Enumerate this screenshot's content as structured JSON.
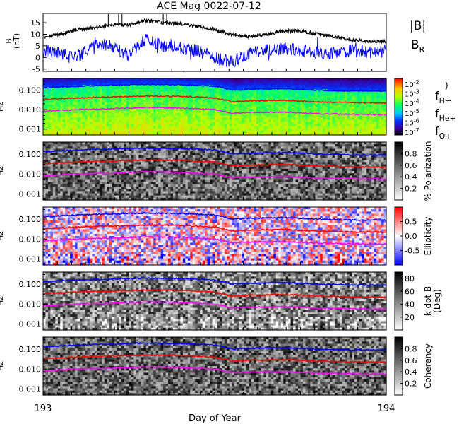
{
  "title": "ACE Mag 0022-07-12",
  "xlabel": "Day of Year",
  "x_ticks": [
    "193",
    "194"
  ],
  "chart_data": [
    {
      "type": "line",
      "panel": "magnetic-field",
      "ylabel": [
        "B",
        "(nT)"
      ],
      "ylim": [
        -6,
        19
      ],
      "yticks": [
        -5,
        0,
        5,
        10,
        15
      ],
      "series": [
        {
          "name": "|B|",
          "color": "#000000",
          "points": [
            [
              193.0,
              9.0
            ],
            [
              193.05,
              10.0
            ],
            [
              193.1,
              12.0
            ],
            [
              193.15,
              13.0
            ],
            [
              193.2,
              14.0
            ],
            [
              193.25,
              14.0
            ],
            [
              193.3,
              16.0
            ],
            [
              193.35,
              15.0
            ],
            [
              193.4,
              14.5
            ],
            [
              193.45,
              13.5
            ],
            [
              193.5,
              12.0
            ],
            [
              193.55,
              10.0
            ],
            [
              193.6,
              9.0
            ],
            [
              193.65,
              10.0
            ],
            [
              193.7,
              11.5
            ],
            [
              193.75,
              11.5
            ],
            [
              193.8,
              10.0
            ],
            [
              193.85,
              9.0
            ],
            [
              193.9,
              7.5
            ],
            [
              193.95,
              7.0
            ],
            [
              194.0,
              7.0
            ]
          ]
        },
        {
          "name": "B_R",
          "color": "#0000ff",
          "points": [
            [
              193.0,
              3.0
            ],
            [
              193.05,
              2.0
            ],
            [
              193.1,
              0.0
            ],
            [
              193.15,
              6.0
            ],
            [
              193.2,
              5.0
            ],
            [
              193.25,
              1.0
            ],
            [
              193.3,
              8.0
            ],
            [
              193.35,
              5.0
            ],
            [
              193.4,
              4.0
            ],
            [
              193.45,
              3.0
            ],
            [
              193.5,
              0.0
            ],
            [
              193.55,
              -2.0
            ],
            [
              193.6,
              2.0
            ],
            [
              193.65,
              3.0
            ],
            [
              193.7,
              4.0
            ],
            [
              193.75,
              3.0
            ],
            [
              193.8,
              2.0
            ],
            [
              193.85,
              2.0
            ],
            [
              193.9,
              3.0
            ],
            [
              193.95,
              2.0
            ],
            [
              194.0,
              3.0
            ]
          ]
        }
      ],
      "legend": [
        {
          "label": "|B|",
          "color": "#000000"
        },
        {
          "label": "B",
          "sub": "R",
          "color": "#3333cc"
        }
      ]
    },
    {
      "type": "heatmap",
      "panel": "power",
      "ylabel": "Hz",
      "yscale": "log",
      "ylim": [
        0.0005,
        0.4
      ],
      "ytick_labels": [
        "0.001",
        "0.010",
        "0.100"
      ],
      "colorbar": {
        "type": "log",
        "tick_labels": [
          "10^-2",
          "10^-3",
          "10^-4",
          "10^-5",
          "10^-6",
          "10^-7"
        ],
        "unit_label": ")"
      },
      "curves": [
        {
          "name": "f_H+",
          "color": "#0000ff",
          "points": [
            [
              193.0,
              0.13
            ],
            [
              193.1,
              0.16
            ],
            [
              193.2,
              0.18
            ],
            [
              193.3,
              0.2
            ],
            [
              193.4,
              0.19
            ],
            [
              193.5,
              0.16
            ],
            [
              193.55,
              0.1
            ],
            [
              193.6,
              0.11
            ],
            [
              193.7,
              0.12
            ],
            [
              193.8,
              0.1
            ],
            [
              193.9,
              0.09
            ],
            [
              194.0,
              0.09
            ]
          ]
        },
        {
          "name": "f_He+",
          "color": "#ff0000",
          "points": [
            [
              193.0,
              0.033
            ],
            [
              193.1,
              0.04
            ],
            [
              193.2,
              0.045
            ],
            [
              193.3,
              0.05
            ],
            [
              193.4,
              0.048
            ],
            [
              193.5,
              0.04
            ],
            [
              193.55,
              0.025
            ],
            [
              193.6,
              0.028
            ],
            [
              193.7,
              0.03
            ],
            [
              193.8,
              0.025
            ],
            [
              193.9,
              0.023
            ],
            [
              194.0,
              0.022
            ]
          ]
        },
        {
          "name": "f_O+",
          "color": "#ff00ff",
          "points": [
            [
              193.0,
              0.008
            ],
            [
              193.1,
              0.01
            ],
            [
              193.2,
              0.011
            ],
            [
              193.3,
              0.013
            ],
            [
              193.4,
              0.012
            ],
            [
              193.5,
              0.01
            ],
            [
              193.55,
              0.0065
            ],
            [
              193.6,
              0.007
            ],
            [
              193.7,
              0.0075
            ],
            [
              193.8,
              0.0062
            ],
            [
              193.9,
              0.0058
            ],
            [
              194.0,
              0.0055
            ]
          ]
        }
      ],
      "legend": [
        {
          "label": "f",
          "sub": "H+",
          "color": "#2222cc"
        },
        {
          "label": "f",
          "sub": "He+",
          "color": "#dd2222"
        },
        {
          "label": "f",
          "sub": "O+",
          "color": "#cc22cc"
        }
      ]
    },
    {
      "type": "heatmap",
      "panel": "polarization",
      "ylabel": "Hz",
      "yscale": "log",
      "ylim": [
        0.0005,
        0.4
      ],
      "ytick_labels": [
        "0.001",
        "0.010",
        "0.100"
      ],
      "colorbar": {
        "type": "linear",
        "range": [
          0,
          1
        ],
        "tick_labels": [
          "0.8",
          "0.6",
          "0.4",
          "0.2"
        ],
        "label": "% Polarization"
      }
    },
    {
      "type": "heatmap",
      "panel": "ellipticity",
      "ylabel": "Hz",
      "yscale": "log",
      "ylim": [
        0.0005,
        0.4
      ],
      "ytick_labels": [
        "0.001",
        "0.010",
        "0.100"
      ],
      "colorbar": {
        "type": "linear",
        "range": [
          -1,
          1
        ],
        "tick_labels": [
          "0.5",
          "0.0",
          "-0.5"
        ],
        "label": "Ellipticity"
      }
    },
    {
      "type": "heatmap",
      "panel": "k-dot-b",
      "ylabel": "Hz",
      "yscale": "log",
      "ylim": [
        0.0005,
        0.4
      ],
      "ytick_labels": [
        "0.001",
        "0.010",
        "0.100"
      ],
      "colorbar": {
        "type": "linear",
        "range": [
          0,
          90
        ],
        "tick_labels": [
          "80",
          "60",
          "40",
          "20"
        ],
        "label": [
          "k dot B",
          "(Deg)"
        ]
      }
    },
    {
      "type": "heatmap",
      "panel": "coherency",
      "ylabel": "Hz",
      "yscale": "log",
      "ylim": [
        0.0005,
        0.4
      ],
      "ytick_labels": [
        "0.001",
        "0.010",
        "0.100"
      ],
      "colorbar": {
        "type": "linear",
        "range": [
          0,
          1
        ],
        "tick_labels": [
          "0.8",
          "0.6",
          "0.4",
          "0.2"
        ],
        "label": "Coherency"
      }
    }
  ]
}
